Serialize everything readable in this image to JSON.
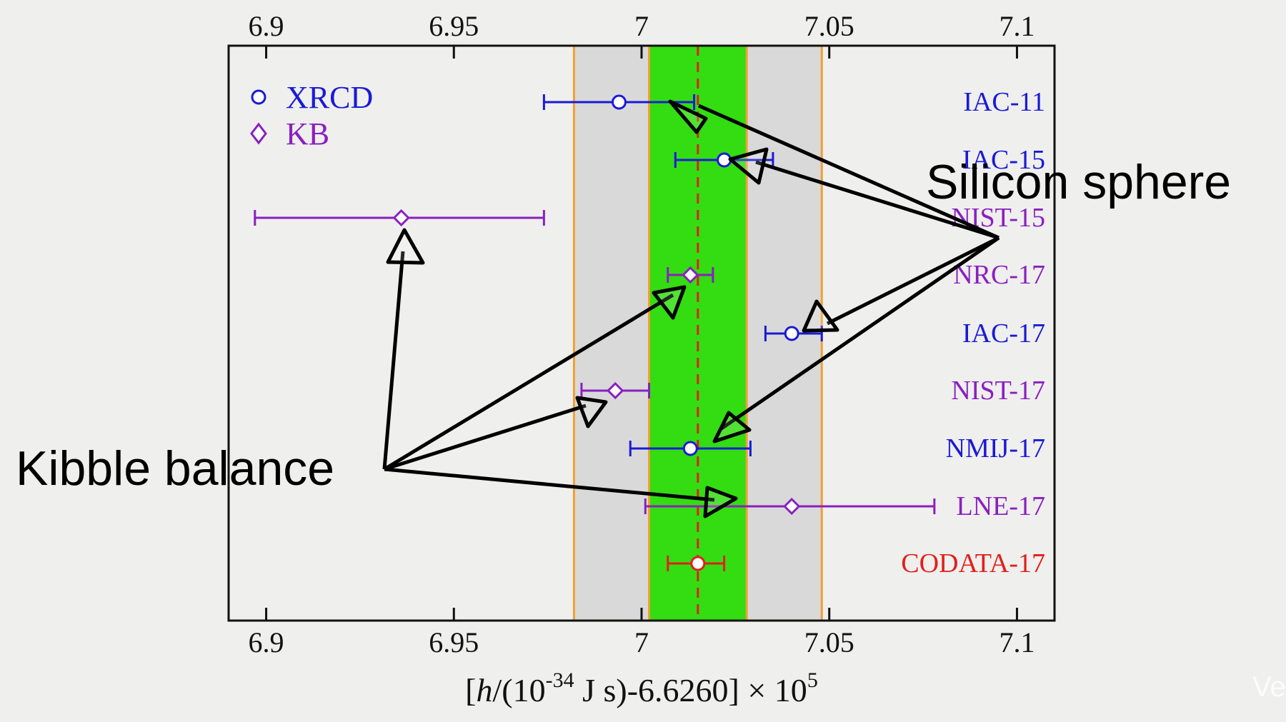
{
  "chart_data": {
    "type": "scatter",
    "subtype": "error-bar-comparison",
    "xlim": [
      6.89,
      7.11
    ],
    "xticks": [
      "6.9",
      "6.95",
      "7",
      "7.05",
      "7.1"
    ],
    "xlabel": {
      "pre": "[",
      "italic": "h",
      "mid": "/(10",
      "sup1": "-34",
      "post": " J s)-6.6260] × 10",
      "sup2": "5"
    },
    "legend": [
      {
        "marker": "circle",
        "label": "XRCD",
        "color": "#1a1ad6"
      },
      {
        "marker": "diamond",
        "label": "KB",
        "color": "#8a1fc0"
      }
    ],
    "bands": {
      "outer": [
        6.982,
        7.048
      ],
      "inner": [
        7.002,
        7.028
      ],
      "center": 7.015,
      "outer_color": "#d9d9d9",
      "inner_color": "#33dd11",
      "edge_color": "#f0a030",
      "center_color": "#e0201c"
    },
    "series": [
      {
        "name": "IAC-11",
        "method": "XRCD",
        "value": 6.994,
        "err_low": 6.974,
        "err_high": 7.014,
        "color": "#1a1ad6"
      },
      {
        "name": "IAC-15",
        "method": "XRCD",
        "value": 7.022,
        "err_low": 7.009,
        "err_high": 7.035,
        "color": "#1a1ad6"
      },
      {
        "name": "NIST-15",
        "method": "KB",
        "value": 6.936,
        "err_low": 6.897,
        "err_high": 6.974,
        "color": "#8a1fc0"
      },
      {
        "name": "NRC-17",
        "method": "KB",
        "value": 7.013,
        "err_low": 7.007,
        "err_high": 7.019,
        "color": "#8a1fc0"
      },
      {
        "name": "IAC-17",
        "method": "XRCD",
        "value": 7.04,
        "err_low": 7.033,
        "err_high": 7.048,
        "color": "#1a1ad6"
      },
      {
        "name": "NIST-17",
        "method": "KB",
        "value": 6.993,
        "err_low": 6.984,
        "err_high": 7.002,
        "color": "#8a1fc0"
      },
      {
        "name": "NMIJ-17",
        "method": "XRCD",
        "value": 7.013,
        "err_low": 6.997,
        "err_high": 7.029,
        "color": "#1a1ad6"
      },
      {
        "name": "LNE-17",
        "method": "KB",
        "value": 7.04,
        "err_low": 7.001,
        "err_high": 7.078,
        "color": "#8a1fc0"
      },
      {
        "name": "CODATA-17",
        "method": "CODATA",
        "value": 7.015,
        "err_low": 7.007,
        "err_high": 7.022,
        "color": "#e0201c"
      }
    ],
    "annotations": [
      {
        "label": "Silicon sphere",
        "points_to": [
          "IAC-11",
          "IAC-15",
          "IAC-17",
          "NMIJ-17"
        ]
      },
      {
        "label": "Kibble balance",
        "points_to": [
          "NIST-15",
          "NRC-17",
          "NIST-17",
          "LNE-17"
        ]
      }
    ]
  },
  "watermark": "Ve"
}
